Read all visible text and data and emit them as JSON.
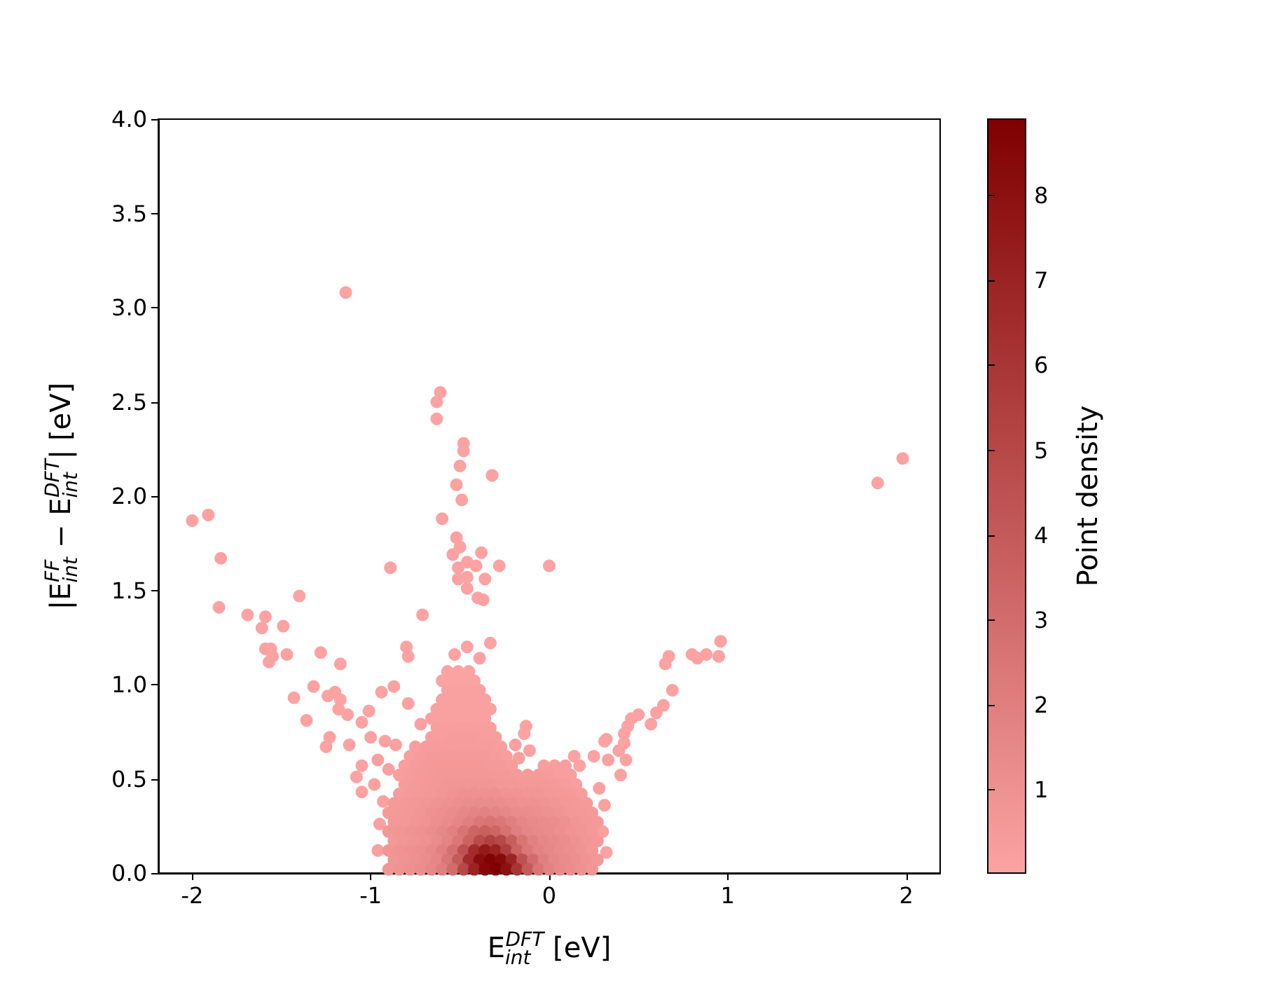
{
  "chart_data": {
    "type": "scatter",
    "xlabel": "E$_{int}$$^{DFT}$ [eV]",
    "ylabel": "|E$_{int}$$^{FF}$ − E$_{int}$$^{DFT}$| [eV]",
    "clabel": "Point density",
    "marker": "circle",
    "xlim": [
      -2.19,
      2.19
    ],
    "ylim": [
      0,
      4
    ],
    "xticks": [
      -2,
      -1,
      0,
      1,
      2
    ],
    "yticks": [
      {
        "value": 0,
        "label": "0.0"
      },
      0.5,
      {
        "value": 1,
        "label": "1.0"
      },
      1.5,
      {
        "value": 2,
        "label": "2.0"
      },
      2.5,
      {
        "value": 3,
        "label": "3.0"
      },
      3.5,
      {
        "value": 4,
        "label": "4.0"
      }
    ],
    "clim": [
      0.02,
      8.9
    ],
    "cticks": [
      1,
      2,
      3,
      4,
      5,
      6,
      7,
      8
    ],
    "x": [
      -1.14,
      -0.61,
      -0.63,
      -0.63,
      -0.48,
      -0.48,
      -0.5,
      -0.32,
      -0.52,
      -0.49,
      -0.6,
      -2.0,
      -1.91,
      -1.84,
      -0.52,
      -0.5,
      -0.54,
      -0.38,
      -0.46,
      -0.41,
      -0.51,
      -0.28,
      0.0,
      -0.89,
      -0.51,
      -0.46,
      -0.36,
      -0.46,
      -1.4,
      -1.85,
      -0.4,
      -0.37,
      1.98,
      1.84,
      -1.69,
      -1.59,
      -1.61,
      -1.49,
      -1.59,
      -1.56,
      -1.57,
      -1.55,
      -1.47,
      -1.28,
      -1.17,
      -0.71,
      -0.8,
      -0.79,
      -1.32,
      -1.43,
      -1.36,
      -1.24,
      -1.2,
      -1.17,
      -1.18,
      -1.13,
      -1.01,
      -0.94,
      -0.87,
      -0.79,
      -1.05,
      -1.23,
      -1.25,
      -1.12,
      -1.0,
      -1.05,
      -1.08,
      -1.05,
      -0.53,
      -0.46,
      -0.33,
      -0.39,
      -0.13,
      -0.14,
      -0.11,
      0.96,
      0.95,
      0.88,
      0.83,
      0.8,
      0.67,
      0.65,
      0.69,
      0.64,
      0.6,
      0.57,
      0.5,
      0.46,
      0.44,
      0.42,
      0.32,
      0.31,
      0.42,
      0.39,
      0.43,
      0.25,
      0.14,
      0.33,
      0.4,
      0.32,
      0.17,
      -0.96,
      -0.92,
      -0.98,
      -0.93,
      -0.95,
      -0.96,
      -0.9,
      -0.86,
      -0.72,
      -0.19,
      -0.17,
      0.3,
      0.31,
      0.28,
      -0.57,
      -0.51,
      -0.45,
      -0.6,
      -0.54,
      -0.48,
      -0.42,
      -0.57,
      -0.51,
      -0.45,
      -0.39,
      -0.6,
      -0.54,
      -0.48,
      -0.42,
      -0.36,
      -0.63,
      -0.57,
      -0.51,
      -0.45,
      -0.39,
      -0.33,
      -0.66,
      -0.6,
      -0.54,
      -0.48,
      -0.42,
      -0.36,
      -0.63,
      -0.57,
      -0.51,
      -0.45,
      -0.39,
      -0.33,
      -0.66,
      -0.6,
      -0.54,
      -0.48,
      -0.42,
      -0.36,
      -0.3,
      -0.75,
      -0.69,
      -0.63,
      -0.57,
      -0.51,
      -0.45,
      -0.39,
      -0.33,
      -0.27,
      -0.78,
      -0.72,
      -0.66,
      -0.6,
      -0.54,
      -0.48,
      -0.42,
      -0.36,
      -0.3,
      -0.24,
      -0.81,
      -0.75,
      -0.69,
      -0.63,
      -0.57,
      -0.51,
      -0.45,
      -0.39,
      -0.33,
      -0.27,
      -0.21,
      -0.03,
      0.03,
      0.09,
      -0.84,
      -0.78,
      -0.72,
      -0.66,
      -0.6,
      -0.54,
      -0.48,
      -0.42,
      -0.36,
      -0.3,
      -0.24,
      -0.18,
      -0.12,
      -0.06,
      0.0,
      0.06,
      0.12,
      -0.81,
      -0.75,
      -0.69,
      -0.63,
      -0.57,
      -0.51,
      -0.45,
      -0.39,
      -0.33,
      -0.27,
      -0.21,
      -0.15,
      -0.09,
      -0.03,
      0.03,
      0.09,
      0.15,
      -0.84,
      -0.78,
      -0.72,
      -0.66,
      -0.6,
      -0.54,
      -0.48,
      -0.42,
      -0.36,
      -0.3,
      -0.24,
      -0.18,
      -0.12,
      -0.06,
      0.0,
      0.06,
      0.12,
      0.18,
      -0.87,
      -0.81,
      -0.75,
      -0.69,
      -0.63,
      -0.57,
      -0.51,
      -0.45,
      -0.39,
      -0.33,
      -0.27,
      -0.21,
      -0.15,
      -0.09,
      -0.03,
      0.03,
      0.09,
      0.15,
      0.21,
      -0.9,
      -0.84,
      -0.78,
      -0.72,
      -0.66,
      -0.6,
      -0.54,
      -0.48,
      -0.42,
      -0.36,
      -0.3,
      -0.24,
      -0.18,
      -0.12,
      -0.06,
      0.0,
      0.06,
      0.12,
      0.18,
      0.24,
      -0.87,
      -0.81,
      -0.75,
      -0.69,
      -0.63,
      -0.57,
      -0.51,
      -0.45,
      -0.39,
      -0.33,
      -0.27,
      -0.21,
      -0.15,
      -0.09,
      -0.03,
      0.03,
      0.09,
      0.15,
      0.21,
      0.27,
      -0.9,
      -0.84,
      -0.78,
      -0.72,
      -0.66,
      -0.6,
      -0.54,
      -0.48,
      -0.42,
      -0.36,
      -0.3,
      -0.24,
      -0.18,
      -0.12,
      -0.06,
      0.0,
      0.06,
      0.12,
      0.18,
      0.24,
      -0.87,
      -0.81,
      -0.75,
      -0.69,
      -0.63,
      -0.57,
      -0.51,
      -0.45,
      -0.39,
      -0.33,
      -0.27,
      -0.21,
      -0.15,
      -0.09,
      -0.03,
      0.03,
      0.09,
      0.15,
      0.21,
      0.27,
      -0.9,
      -0.84,
      -0.78,
      -0.72,
      -0.66,
      -0.6,
      -0.54,
      -0.48,
      -0.42,
      -0.36,
      -0.3,
      -0.24,
      -0.18,
      -0.12,
      -0.06,
      0.0,
      0.06,
      0.12,
      0.18,
      0.24,
      -0.87,
      -0.81,
      -0.75,
      -0.69,
      -0.63,
      -0.57,
      -0.51,
      -0.45,
      -0.39,
      -0.33,
      -0.27,
      -0.21,
      -0.15,
      -0.09,
      -0.03,
      0.03,
      0.09,
      0.15,
      0.21,
      0.27,
      -0.9,
      -0.84,
      -0.78,
      -0.72,
      -0.66,
      -0.6,
      -0.54,
      -0.48,
      -0.42,
      -0.36,
      -0.3,
      -0.24,
      -0.18,
      -0.12,
      -0.06,
      0.0,
      0.06,
      0.12,
      0.18,
      0.24
    ],
    "values": [
      3.08,
      2.55,
      2.5,
      2.41,
      2.28,
      2.24,
      2.16,
      2.11,
      2.06,
      1.98,
      1.88,
      1.87,
      1.9,
      1.67,
      1.78,
      1.73,
      1.69,
      1.7,
      1.65,
      1.63,
      1.62,
      1.63,
      1.63,
      1.62,
      1.56,
      1.57,
      1.56,
      1.51,
      1.47,
      1.41,
      1.46,
      1.45,
      2.2,
      2.07,
      1.37,
      1.36,
      1.3,
      1.31,
      1.19,
      1.19,
      1.12,
      1.15,
      1.16,
      1.17,
      1.11,
      1.37,
      1.2,
      1.15,
      0.99,
      0.93,
      0.81,
      0.94,
      0.96,
      0.92,
      0.87,
      0.84,
      0.86,
      0.96,
      0.99,
      0.9,
      0.8,
      0.72,
      0.67,
      0.68,
      0.72,
      0.57,
      0.51,
      0.43,
      1.16,
      1.2,
      1.22,
      1.14,
      0.78,
      0.74,
      0.65,
      1.23,
      1.15,
      1.16,
      1.14,
      1.16,
      1.15,
      1.11,
      0.97,
      0.89,
      0.85,
      0.79,
      0.84,
      0.82,
      0.78,
      0.74,
      0.71,
      0.7,
      0.69,
      0.65,
      0.6,
      0.62,
      0.62,
      0.6,
      0.52,
      0.11,
      0.57,
      0.6,
      0.7,
      0.47,
      0.38,
      0.26,
      0.12,
      0.55,
      0.68,
      0.79,
      0.68,
      0.61,
      0.22,
      0.36,
      0.45,
      1.07,
      1.07,
      1.07,
      1.02,
      1.02,
      1.02,
      1.02,
      0.97,
      0.97,
      0.97,
      0.97,
      0.92,
      0.92,
      0.92,
      0.92,
      0.92,
      0.87,
      0.87,
      0.87,
      0.87,
      0.87,
      0.87,
      0.82,
      0.82,
      0.82,
      0.82,
      0.82,
      0.82,
      0.77,
      0.77,
      0.77,
      0.77,
      0.77,
      0.77,
      0.72,
      0.72,
      0.72,
      0.72,
      0.72,
      0.72,
      0.72,
      0.67,
      0.67,
      0.67,
      0.67,
      0.67,
      0.67,
      0.67,
      0.67,
      0.67,
      0.62,
      0.62,
      0.62,
      0.62,
      0.62,
      0.62,
      0.62,
      0.62,
      0.62,
      0.62,
      0.57,
      0.57,
      0.57,
      0.57,
      0.57,
      0.57,
      0.57,
      0.57,
      0.57,
      0.57,
      0.57,
      0.57,
      0.57,
      0.57,
      0.52,
      0.52,
      0.52,
      0.52,
      0.52,
      0.52,
      0.52,
      0.52,
      0.52,
      0.52,
      0.52,
      0.52,
      0.52,
      0.52,
      0.52,
      0.52,
      0.52,
      0.47,
      0.47,
      0.47,
      0.47,
      0.47,
      0.47,
      0.47,
      0.47,
      0.47,
      0.47,
      0.47,
      0.47,
      0.47,
      0.47,
      0.47,
      0.47,
      0.47,
      0.42,
      0.42,
      0.42,
      0.42,
      0.42,
      0.42,
      0.42,
      0.42,
      0.42,
      0.42,
      0.42,
      0.42,
      0.42,
      0.42,
      0.42,
      0.42,
      0.42,
      0.42,
      0.37,
      0.37,
      0.37,
      0.37,
      0.37,
      0.37,
      0.37,
      0.37,
      0.37,
      0.37,
      0.37,
      0.37,
      0.37,
      0.37,
      0.37,
      0.37,
      0.37,
      0.37,
      0.37,
      0.32,
      0.32,
      0.32,
      0.32,
      0.32,
      0.32,
      0.32,
      0.32,
      0.32,
      0.32,
      0.32,
      0.32,
      0.32,
      0.32,
      0.32,
      0.32,
      0.32,
      0.32,
      0.32,
      0.32,
      0.27,
      0.27,
      0.27,
      0.27,
      0.27,
      0.27,
      0.27,
      0.27,
      0.27,
      0.27,
      0.27,
      0.27,
      0.27,
      0.27,
      0.27,
      0.27,
      0.27,
      0.27,
      0.27,
      0.27,
      0.22,
      0.22,
      0.22,
      0.22,
      0.22,
      0.22,
      0.22,
      0.22,
      0.22,
      0.22,
      0.22,
      0.22,
      0.22,
      0.22,
      0.22,
      0.22,
      0.22,
      0.22,
      0.22,
      0.22,
      0.17,
      0.17,
      0.17,
      0.17,
      0.17,
      0.17,
      0.17,
      0.17,
      0.17,
      0.17,
      0.17,
      0.17,
      0.17,
      0.17,
      0.17,
      0.17,
      0.17,
      0.17,
      0.17,
      0.17,
      0.12,
      0.12,
      0.12,
      0.12,
      0.12,
      0.12,
      0.12,
      0.12,
      0.12,
      0.12,
      0.12,
      0.12,
      0.12,
      0.12,
      0.12,
      0.12,
      0.12,
      0.12,
      0.12,
      0.12,
      0.07,
      0.07,
      0.07,
      0.07,
      0.07,
      0.07,
      0.07,
      0.07,
      0.07,
      0.07,
      0.07,
      0.07,
      0.07,
      0.07,
      0.07,
      0.07,
      0.07,
      0.07,
      0.07,
      0.07,
      0.02,
      0.02,
      0.02,
      0.02,
      0.02,
      0.02,
      0.02,
      0.02,
      0.02,
      0.02,
      0.02,
      0.02,
      0.02,
      0.02,
      0.02,
      0.02,
      0.02,
      0.02,
      0.02,
      0.02
    ],
    "cvalues": [
      0.05,
      0.05,
      0.05,
      0.05,
      0.05,
      0.05,
      0.05,
      0.05,
      0.05,
      0.05,
      0.05,
      0.05,
      0.05,
      0.05,
      0.05,
      0.05,
      0.05,
      0.05,
      0.05,
      0.05,
      0.05,
      0.05,
      0.05,
      0.05,
      0.05,
      0.05,
      0.05,
      0.05,
      0.05,
      0.05,
      0.05,
      0.05,
      0.05,
      0.05,
      0.05,
      0.05,
      0.05,
      0.05,
      0.05,
      0.05,
      0.05,
      0.05,
      0.05,
      0.05,
      0.05,
      0.05,
      0.05,
      0.05,
      0.05,
      0.05,
      0.05,
      0.05,
      0.05,
      0.05,
      0.05,
      0.05,
      0.05,
      0.05,
      0.05,
      0.05,
      0.05,
      0.05,
      0.05,
      0.05,
      0.05,
      0.05,
      0.05,
      0.05,
      0.05,
      0.05,
      0.05,
      0.05,
      0.05,
      0.05,
      0.05,
      0.05,
      0.05,
      0.05,
      0.05,
      0.05,
      0.05,
      0.05,
      0.05,
      0.05,
      0.05,
      0.05,
      0.05,
      0.05,
      0.05,
      0.05,
      0.05,
      0.05,
      0.05,
      0.05,
      0.05,
      0.05,
      0.05,
      0.05,
      0.05,
      0.05,
      0.05,
      0.2,
      0.2,
      0.2,
      0.2,
      0.2,
      0.2,
      0.2,
      0.2,
      0.2,
      0.2,
      0.2,
      0.2,
      0.2,
      0.2,
      0.1,
      0.1,
      0.1,
      0.1,
      0.1,
      0.1,
      0.1,
      0.2,
      0.2,
      0.2,
      0.2,
      0.2,
      0.2,
      0.2,
      0.2,
      0.2,
      0.2,
      0.2,
      0.2,
      0.2,
      0.2,
      0.2,
      0.2,
      0.2,
      0.2,
      0.2,
      0.2,
      0.2,
      0.3,
      0.3,
      0.3,
      0.3,
      0.3,
      0.3,
      0.3,
      0.3,
      0.4,
      0.4,
      0.4,
      0.3,
      0.3,
      0.3,
      0.4,
      0.4,
      0.4,
      0.4,
      0.4,
      0.4,
      0.4,
      0.3,
      0.3,
      0.4,
      0.5,
      0.5,
      0.5,
      0.5,
      0.5,
      0.5,
      0.4,
      0.3,
      0.3,
      0.4,
      0.5,
      0.6,
      0.6,
      0.6,
      0.6,
      0.6,
      0.5,
      0.5,
      0.4,
      0.3,
      0.3,
      0.3,
      0.3,
      0.4,
      0.5,
      0.6,
      0.7,
      0.7,
      0.7,
      0.7,
      0.7,
      0.6,
      0.6,
      0.5,
      0.5,
      0.5,
      0.4,
      0.3,
      0.3,
      0.4,
      0.5,
      0.6,
      0.7,
      0.8,
      0.8,
      0.8,
      0.8,
      0.8,
      0.7,
      0.7,
      0.6,
      0.6,
      0.6,
      0.5,
      0.4,
      0.3,
      0.4,
      0.5,
      0.6,
      0.7,
      0.8,
      0.9,
      1.0,
      1.0,
      1.0,
      1.0,
      0.9,
      0.9,
      0.8,
      0.8,
      0.7,
      0.6,
      0.5,
      0.4,
      0.5,
      0.6,
      0.7,
      0.8,
      0.9,
      1.0,
      1.1,
      1.2,
      1.3,
      1.3,
      1.2,
      1.1,
      1.0,
      1.0,
      0.9,
      0.8,
      0.7,
      0.6,
      0.5,
      0.5,
      0.6,
      0.7,
      0.8,
      1.0,
      1.1,
      1.3,
      1.5,
      1.7,
      1.8,
      1.7,
      1.5,
      1.3,
      1.2,
      1.1,
      1.0,
      0.9,
      0.7,
      0.6,
      0.5,
      0.6,
      0.7,
      0.8,
      0.9,
      1.1,
      1.3,
      1.6,
      2.0,
      2.4,
      2.6,
      2.4,
      2.0,
      1.6,
      1.4,
      1.3,
      1.2,
      1.0,
      0.8,
      0.7,
      0.5,
      0.7,
      0.8,
      0.9,
      1.0,
      1.2,
      1.5,
      1.9,
      2.6,
      3.4,
      3.7,
      3.4,
      2.7,
      2.0,
      1.6,
      1.4,
      1.3,
      1.1,
      0.9,
      0.8,
      0.6,
      0.7,
      0.8,
      0.9,
      1.0,
      1.3,
      1.7,
      2.4,
      3.5,
      4.8,
      5.4,
      5.0,
      3.8,
      2.6,
      1.9,
      1.6,
      1.4,
      1.2,
      1.0,
      0.8,
      0.6,
      0.8,
      0.9,
      1.0,
      1.1,
      1.4,
      1.9,
      2.8,
      4.5,
      6.5,
      7.5,
      7.0,
      5.5,
      3.5,
      2.4,
      1.8,
      1.5,
      1.3,
      1.1,
      0.9,
      0.7,
      0.8,
      0.9,
      1.0,
      1.2,
      1.6,
      2.5,
      4.0,
      6.5,
      8.2,
      8.8,
      8.4,
      7.0,
      4.5,
      3.0,
      2.0,
      1.5,
      1.3,
      1.1,
      0.9,
      0.7,
      0.8,
      0.9,
      1.0,
      1.2,
      1.5,
      2.0,
      3.0,
      5.0,
      7.0,
      8.5,
      8.9,
      8.0,
      6.0,
      4.0,
      2.5,
      1.8,
      1.4,
      1.2,
      1.0,
      0.8
    ]
  }
}
